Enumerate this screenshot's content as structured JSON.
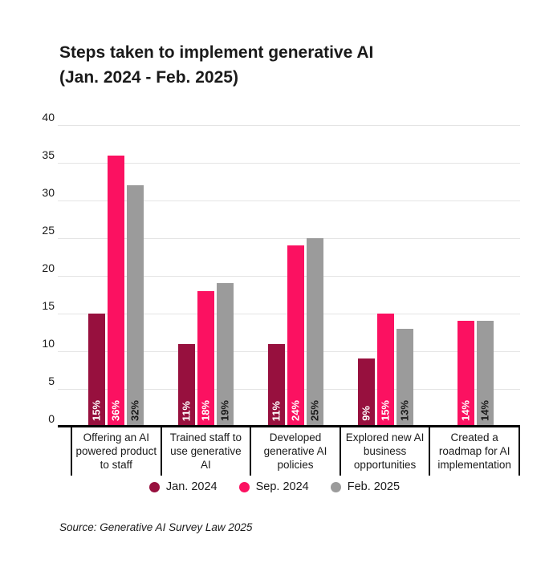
{
  "header": {
    "title": "Steps taken to implement generative AI",
    "subtitle": "(Jan. 2024 - Feb. 2025)"
  },
  "chart_data": {
    "type": "bar",
    "title": "Steps taken to implement generative AI (Jan. 2024 - Feb. 2025)",
    "categories": [
      "Offering an AI powered product to staff",
      "Trained staff to use generative AI",
      "Developed generative AI policies",
      "Explored new AI business opportunities",
      "Created a roadmap for AI implementation"
    ],
    "series": [
      {
        "name": "Jan. 2024",
        "color": "#97103E",
        "label_color": "#FFFFFF",
        "values": [
          15,
          11,
          11,
          9,
          null
        ],
        "labels": [
          "15%",
          "11%",
          "11%",
          "9%",
          null
        ]
      },
      {
        "name": "Sep. 2024",
        "color": "#FB1161",
        "label_color": "#FFFFFF",
        "values": [
          36,
          18,
          24,
          15,
          14
        ],
        "labels": [
          "36%",
          "18%",
          "24%",
          "15%",
          "14%"
        ]
      },
      {
        "name": "Feb. 2025",
        "color": "#9B9B9B",
        "label_color": "#1A1A1A",
        "values": [
          32,
          19,
          25,
          13,
          14
        ],
        "labels": [
          "32%",
          "19%",
          "25%",
          "13%",
          "14%"
        ]
      }
    ],
    "y_axis": {
      "min": 0,
      "max": 40,
      "step": 5,
      "ticks": [
        0,
        5,
        10,
        15,
        20,
        25,
        30,
        35,
        40
      ]
    },
    "xlabel": "",
    "ylabel": "",
    "grid": true,
    "legend_position": "bottom"
  },
  "source": {
    "text": "Source: Generative AI Survey Law 2025"
  },
  "colors": {
    "grid": "#E4E4E4",
    "axis": "#000000",
    "text": "#1A1A1A",
    "background": "#FFFFFF"
  }
}
